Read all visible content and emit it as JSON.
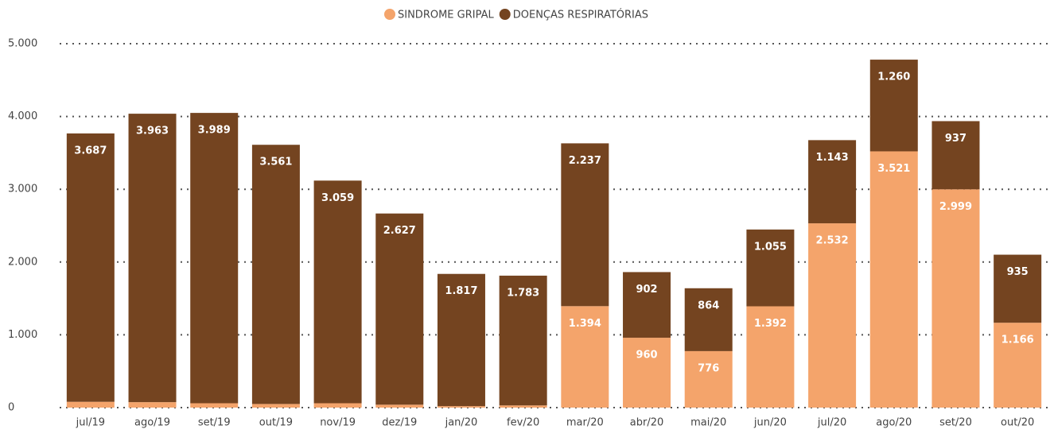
{
  "chart_data": {
    "type": "stacked-bar",
    "categories": [
      "jul/19",
      "ago/19",
      "set/19",
      "out/19",
      "nov/19",
      "dez/19",
      "jan/20",
      "fev/20",
      "mar/20",
      "abr/20",
      "mai/20",
      "jun/20",
      "jul/20",
      "ago/20",
      "set/20",
      "out/20"
    ],
    "series": [
      {
        "name": "SINDROME GRIPAL",
        "color": "#f4a46b",
        "values": [
          80,
          75,
          60,
          50,
          60,
          40,
          20,
          30,
          1394,
          960,
          776,
          1392,
          2532,
          3521,
          2999,
          1166
        ],
        "value_labels": [
          null,
          null,
          null,
          null,
          null,
          null,
          null,
          null,
          "1.394",
          "960",
          "776",
          "1.392",
          "2.532",
          "3.521",
          "2.999",
          "1.166"
        ]
      },
      {
        "name": "DOENÇAS RESPIRATÓRIAS",
        "color": "#744420",
        "values": [
          3687,
          3963,
          3989,
          3561,
          3059,
          2627,
          1817,
          1783,
          2237,
          902,
          864,
          1055,
          1143,
          1260,
          937,
          935
        ],
        "value_labels": [
          "3.687",
          "3.963",
          "3.989",
          "3.561",
          "3.059",
          "2.627",
          "1.817",
          "1.783",
          "2.237",
          "902",
          "864",
          "1.055",
          "1.143",
          "1.260",
          "937",
          "935"
        ]
      }
    ],
    "ylim": [
      0,
      5000
    ],
    "yticks": [
      0,
      {
        "value": 1000,
        "label": "1.000"
      },
      {
        "value": 2000,
        "label": "2.000"
      },
      {
        "value": 3000,
        "label": "3.000"
      },
      {
        "value": 4000,
        "label": "4.000"
      },
      {
        "value": 5000,
        "label": "5.000"
      }
    ],
    "grid": true,
    "legend": "top"
  }
}
